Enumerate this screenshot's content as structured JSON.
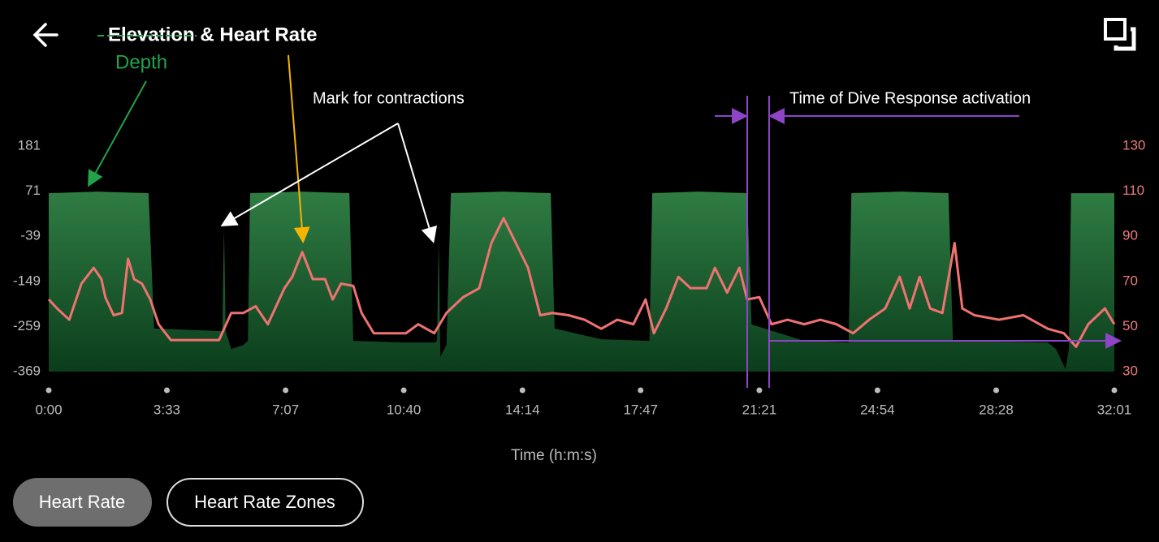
{
  "chart_data": {
    "type": "area-line",
    "title": "Elevation & Heart Rate",
    "xlabel": "Time (h:m:s)",
    "annotations": [
      "Mark for contractions",
      "Time of Dive Response activation"
    ],
    "xlim": [
      0,
      1921
    ],
    "xticks": [
      {
        "value": 0,
        "label": "0:00"
      },
      {
        "value": 213,
        "label": "3:33"
      },
      {
        "value": 427,
        "label": "7:07"
      },
      {
        "value": 640,
        "label": "10:40"
      },
      {
        "value": 854,
        "label": "14:14"
      },
      {
        "value": 1067,
        "label": "17:47"
      },
      {
        "value": 1281,
        "label": "21:21"
      },
      {
        "value": 1494,
        "label": "24:54"
      },
      {
        "value": 1708,
        "label": "28:28"
      },
      {
        "value": 1921,
        "label": "32:01"
      }
    ],
    "ylim": [
      -369,
      181
    ],
    "yticks": [
      -369,
      -259,
      -149,
      -39,
      71,
      181
    ],
    "y2lim": [
      30,
      130
    ],
    "y2ticks": [
      30,
      50,
      70,
      90,
      110,
      130
    ],
    "grid": false,
    "series": [
      {
        "name": "Depth",
        "color": "#2f7d43",
        "kind": "area",
        "x": [
          0,
          88,
          180,
          190,
          307,
          313,
          316,
          319,
          329,
          351,
          359,
          363,
          454,
          542,
          549,
          644,
          696,
          700,
          703,
          706,
          717,
          725,
          820,
          905,
          912,
          996,
          1083,
          1088,
          1171,
          1259,
          1267,
          1362,
          1442,
          1447,
          1537,
          1622,
          1630,
          1801,
          1816,
          1833,
          1839,
          1843,
          1921
        ],
        "values": [
          66,
          70,
          66,
          -264,
          -270,
          -270,
          -23,
          -270,
          -314,
          -304,
          -294,
          66,
          70,
          66,
          -294,
          -298,
          -298,
          -294,
          -56,
          -333,
          -304,
          66,
          70,
          66,
          -264,
          -290,
          -294,
          66,
          70,
          66,
          -254,
          -294,
          -298,
          66,
          70,
          66,
          -294,
          -298,
          -314,
          -363,
          -314,
          66,
          66
        ]
      },
      {
        "color": "#f07272",
        "kind": "line",
        "axis": "y2",
        "x": [
          0,
          15,
          37,
          59,
          81,
          95,
          102,
          117,
          132,
          143,
          154,
          168,
          183,
          198,
          220,
          249,
          278,
          307,
          329,
          351,
          373,
          395,
          425,
          439,
          457,
          476,
          498,
          512,
          527,
          549,
          564,
          586,
          615,
          644,
          666,
          695,
          717,
          747,
          776,
          798,
          820,
          842,
          864,
          886,
          908,
          937,
          966,
          996,
          1025,
          1054,
          1076,
          1091,
          1113,
          1135,
          1157,
          1186,
          1201,
          1223,
          1245,
          1259,
          1281,
          1303,
          1332,
          1362,
          1391,
          1420,
          1450,
          1479,
          1508,
          1534,
          1552,
          1570,
          1589,
          1611,
          1633,
          1647,
          1669,
          1713,
          1757,
          1801,
          1830,
          1852,
          1874,
          1904,
          1921
        ],
        "values": [
          62,
          58,
          53,
          69,
          76,
          71,
          63,
          55,
          56,
          80,
          71,
          69,
          62,
          51,
          44,
          44,
          44,
          44,
          56,
          56,
          59,
          51,
          67,
          72,
          83,
          71,
          71,
          62,
          69,
          68,
          56,
          47,
          47,
          47,
          51,
          47,
          56,
          63,
          67,
          87,
          98,
          87,
          76,
          55,
          56,
          55,
          53,
          49,
          53,
          51,
          62,
          47,
          58,
          72,
          67,
          67,
          76,
          65,
          76,
          62,
          63,
          51,
          53,
          51,
          53,
          51,
          47,
          53,
          58,
          72,
          58,
          72,
          58,
          56,
          87,
          58,
          55,
          53,
          55,
          49,
          47,
          41,
          51,
          58,
          51
        ]
      }
    ]
  },
  "tabs": [
    "Heart Rate",
    "Heart Rate Zones"
  ]
}
